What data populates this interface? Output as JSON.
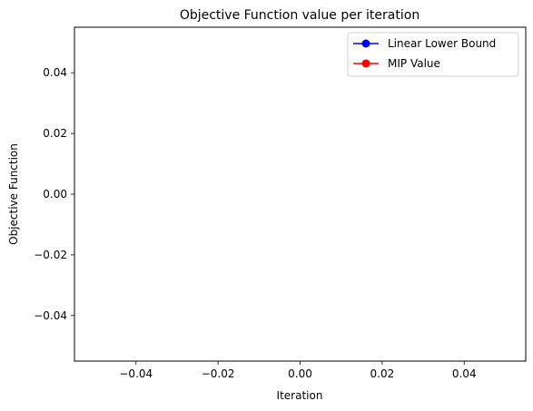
{
  "chart_data": {
    "type": "line",
    "title": "Objective Function value per iteration",
    "xlabel": "Iteration",
    "ylabel": "Objective Function",
    "xlim": [
      -0.055,
      0.055
    ],
    "ylim": [
      -0.055,
      0.055
    ],
    "x_ticks": [
      -0.04,
      -0.02,
      0.0,
      0.02,
      0.04
    ],
    "x_tick_labels": [
      "−0.04",
      "−0.02",
      "0.00",
      "0.02",
      "0.04"
    ],
    "y_ticks": [
      0.04,
      0.02,
      0.0,
      -0.02,
      -0.04
    ],
    "y_tick_labels": [
      "0.04",
      "0.02",
      "0.00",
      "−0.02",
      "−0.04"
    ],
    "grid": false,
    "legend_position": "top-right",
    "series": [
      {
        "name": "Linear Lower Bound",
        "color": "#0000ff",
        "marker": "circle",
        "x": [],
        "y": []
      },
      {
        "name": "MIP Value",
        "color": "#ff0000",
        "marker": "circle",
        "x": [],
        "y": []
      }
    ]
  }
}
